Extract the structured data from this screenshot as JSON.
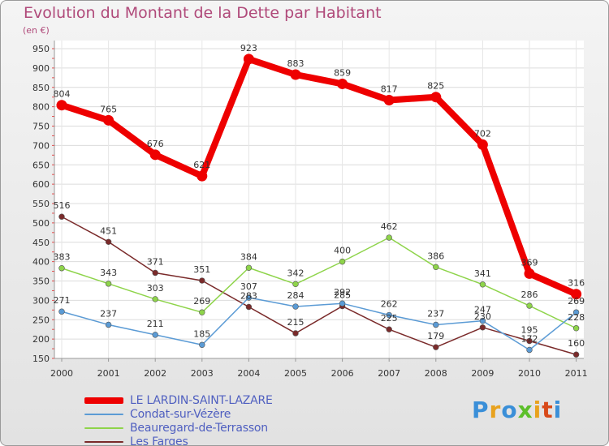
{
  "header": {
    "title": "Evolution du Montant de la Dette par Habitant",
    "unit": "(en €)"
  },
  "logo": {
    "text": "Proxiti",
    "colors": [
      "#3a8fd8",
      "#e8a21e",
      "#3a8fd8",
      "#5cbf2a",
      "#e8a21e",
      "#d84a1a",
      "#3a8fd8"
    ]
  },
  "chart_data": {
    "type": "line",
    "x": [
      "2000",
      "2001",
      "2002",
      "2003",
      "2004",
      "2005",
      "2006",
      "2007",
      "2008",
      "2009",
      "2010",
      "2011"
    ],
    "ylim": [
      150,
      950
    ],
    "yticks": [
      150,
      200,
      250,
      300,
      350,
      400,
      450,
      500,
      550,
      600,
      650,
      700,
      750,
      800,
      850,
      900,
      950
    ],
    "grid": true,
    "legend_position": "bottom-left",
    "series": [
      {
        "name": "LE LARDIN-SAINT-LAZARE",
        "color": "#ee0000",
        "values": [
          804,
          765,
          676,
          621,
          923,
          883,
          859,
          817,
          825,
          702,
          369,
          316
        ]
      },
      {
        "name": "Condat-sur-Vézère",
        "color": "#5b9bd5",
        "values": [
          271,
          237,
          211,
          185,
          307,
          284,
          292,
          262,
          237,
          247,
          172,
          269
        ]
      },
      {
        "name": "Beauregard-de-Terrasson",
        "color": "#8ed44a",
        "values": [
          383,
          343,
          303,
          269,
          384,
          342,
          400,
          462,
          386,
          341,
          286,
          228
        ]
      },
      {
        "name": "Les Farges",
        "color": "#7a2a2a",
        "values": [
          516,
          451,
          371,
          351,
          283,
          215,
          285,
          225,
          179,
          230,
          195,
          160
        ]
      }
    ]
  }
}
